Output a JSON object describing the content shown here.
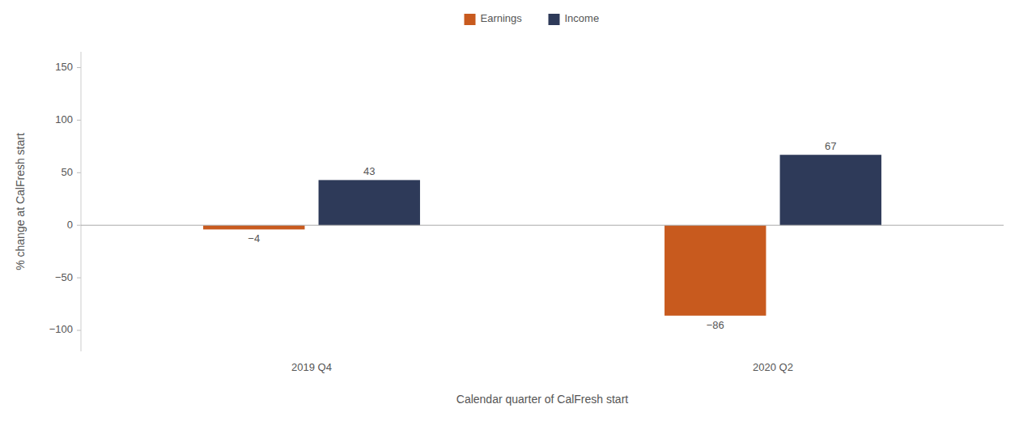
{
  "chart_data": {
    "type": "bar",
    "xlabel": "Calendar quarter of CalFresh start",
    "ylabel": "% change at CalFresh start",
    "categories": [
      "2019 Q4",
      "2020 Q2"
    ],
    "series": [
      {
        "name": "Earnings",
        "color": "#C85A1E",
        "values": [
          -4,
          -86
        ],
        "value_labels": [
          "−4",
          "−86"
        ]
      },
      {
        "name": "Income",
        "color": "#2E3A59",
        "values": [
          43,
          67
        ]
      }
    ],
    "ylim": [
      -120,
      165
    ],
    "yticks": [
      {
        "value": -100,
        "label": "−100"
      },
      {
        "value": -50,
        "label": "−50"
      },
      0,
      50,
      100,
      150
    ],
    "grid": false,
    "legend": "top",
    "data_labels": true
  }
}
